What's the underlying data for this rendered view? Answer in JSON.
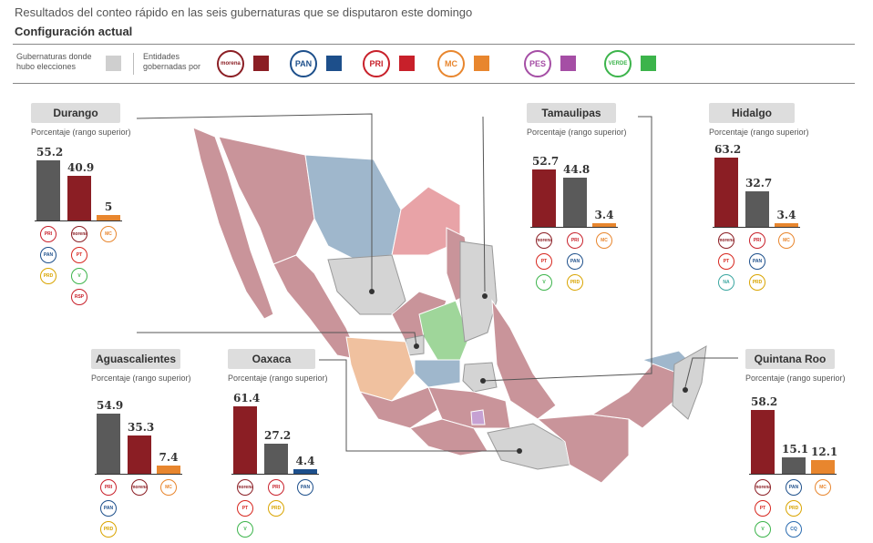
{
  "header": {
    "subtitle": "Resultados del conteo rápido en las seis gubernaturas que se disputaron este domingo",
    "config_label": "Configuración actual"
  },
  "legend": {
    "elections_label_1": "Gubernaturas donde",
    "elections_label_2": "hubo elecciones",
    "governed_label_1": "Entidades",
    "governed_label_2": "gobernadas por",
    "parties": [
      {
        "name": "morena",
        "logo_text": "morena",
        "color": "#8b1e24"
      },
      {
        "name": "PAN",
        "logo_text": "PAN",
        "color": "#1d4f8b"
      },
      {
        "name": "PRI",
        "logo_text": "PRI",
        "color": "#c8202a"
      },
      {
        "name": "MC",
        "logo_text": "MC",
        "color": "#e8862e"
      },
      {
        "name": "PES",
        "logo_text": "PES",
        "color": "#a54ea5"
      },
      {
        "name": "VERDE",
        "logo_text": "VERDE",
        "color": "#3cb44b"
      }
    ],
    "elections_color": "#cfcfcf"
  },
  "panels_subtitle": "Porcentaje (rango superior)",
  "chart_data": [
    {
      "type": "bar",
      "state": "Durango",
      "values": [
        55.2,
        40.9,
        5
      ],
      "labels": [
        "55.2",
        "40.9",
        "5"
      ],
      "colors": [
        "#5a5a5a",
        "#8b1e24",
        "#e8862e"
      ],
      "coalitions": [
        [
          "PRI",
          "PAN",
          "PRD"
        ],
        [
          "morena",
          "PT",
          "VERDE",
          "RSP"
        ],
        [
          "MC"
        ]
      ]
    },
    {
      "type": "bar",
      "state": "Tamaulipas",
      "values": [
        52.7,
        44.8,
        3.4
      ],
      "labels": [
        "52.7",
        "44.8",
        "3.4"
      ],
      "colors": [
        "#8b1e24",
        "#5a5a5a",
        "#e8862e"
      ],
      "coalitions": [
        [
          "morena",
          "PT",
          "VERDE"
        ],
        [
          "PRI",
          "PAN",
          "PRD"
        ],
        [
          "MC"
        ]
      ]
    },
    {
      "type": "bar",
      "state": "Hidalgo",
      "values": [
        63.2,
        32.7,
        3.4
      ],
      "labels": [
        "63.2",
        "32.7",
        "3.4"
      ],
      "colors": [
        "#8b1e24",
        "#5a5a5a",
        "#e8862e"
      ],
      "coalitions": [
        [
          "morena",
          "PT",
          "NA"
        ],
        [
          "PRI",
          "PAN",
          "PRD"
        ],
        [
          "MC"
        ]
      ]
    },
    {
      "type": "bar",
      "state": "Aguascalientes",
      "values": [
        54.9,
        35.3,
        7.4
      ],
      "labels": [
        "54.9",
        "35.3",
        "7.4"
      ],
      "colors": [
        "#5a5a5a",
        "#8b1e24",
        "#e8862e"
      ],
      "coalitions": [
        [
          "PRI",
          "PAN",
          "PRD"
        ],
        [
          "morena"
        ],
        [
          "MC"
        ]
      ]
    },
    {
      "type": "bar",
      "state": "Oaxaca",
      "values": [
        61.4,
        27.2,
        4.4
      ],
      "labels": [
        "61.4",
        "27.2",
        "4.4"
      ],
      "colors": [
        "#8b1e24",
        "#5a5a5a",
        "#1d4f8b"
      ],
      "coalitions": [
        [
          "morena",
          "PT",
          "VERDE"
        ],
        [
          "PRI",
          "PRD"
        ],
        [
          "PAN"
        ]
      ]
    },
    {
      "type": "bar",
      "state": "Quintana Roo",
      "values": [
        58.2,
        15.1,
        12.1
      ],
      "labels": [
        "58.2",
        "15.1",
        "12.1"
      ],
      "colors": [
        "#8b1e24",
        "#5a5a5a",
        "#e8862e"
      ],
      "coalitions": [
        [
          "morena",
          "PT",
          "VERDE"
        ],
        [
          "PAN",
          "PRD",
          "CQ"
        ],
        [
          "MC"
        ]
      ]
    }
  ],
  "logo_styles": {
    "morena": {
      "text": "morena",
      "color": "#8b1e24"
    },
    "PAN": {
      "text": "PAN",
      "color": "#1d4f8b"
    },
    "PRI": {
      "text": "PRI",
      "color": "#c8202a"
    },
    "PRD": {
      "text": "PRD",
      "color": "#d9a400"
    },
    "PT": {
      "text": "PT",
      "color": "#d7261e"
    },
    "VERDE": {
      "text": "V",
      "color": "#3cb44b"
    },
    "RSP": {
      "text": "RSP",
      "color": "#c8202a"
    },
    "MC": {
      "text": "MC",
      "color": "#e8862e"
    },
    "NA": {
      "text": "NA",
      "color": "#3aa6a0"
    },
    "CQ": {
      "text": "CQ",
      "color": "#2b6cb0"
    }
  }
}
